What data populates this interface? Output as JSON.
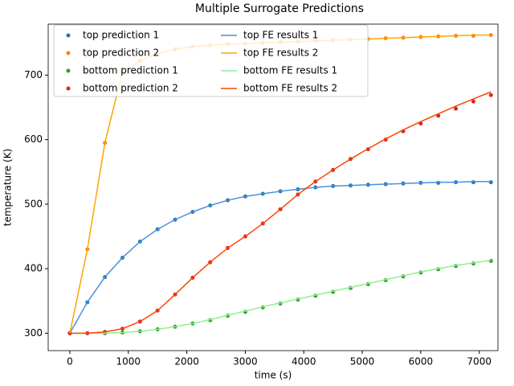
{
  "chart_data": {
    "type": "line",
    "title": "Multiple Surrogate Predictions",
    "x_label": "time (s)",
    "y_label": "temperature (K)",
    "x": [
      0,
      300,
      600,
      900,
      1200,
      1500,
      1800,
      2100,
      2400,
      2700,
      3000,
      3300,
      3600,
      3900,
      4200,
      4500,
      4800,
      5100,
      5400,
      5700,
      6000,
      6300,
      6600,
      6900,
      7200
    ],
    "xlim": [
      -370,
      7320
    ],
    "xticks": [
      0,
      1000,
      2000,
      3000,
      4000,
      5000,
      6000,
      7000
    ],
    "ylim": [
      273,
      779
    ],
    "yticks": [
      300,
      400,
      500,
      600,
      700
    ],
    "legend": "upper left",
    "legend_columns": 2,
    "series": [
      {
        "name": "top prediction 1",
        "style": "scatter",
        "color": "#1f77b4",
        "values": [
          300,
          348,
          387,
          417,
          442,
          461,
          476,
          488,
          498,
          506,
          512,
          516,
          520,
          523,
          526,
          528,
          529,
          530,
          531,
          532,
          533,
          533,
          534,
          534,
          534
        ]
      },
      {
        "name": "top prediction 2",
        "style": "scatter",
        "color": "#ff7f0e",
        "values": [
          300,
          430,
          595,
          705,
          722,
          733,
          740,
          744,
          746,
          748,
          749,
          750,
          751,
          752,
          753,
          754,
          755,
          756,
          757,
          758,
          759,
          760,
          761,
          761,
          762
        ]
      },
      {
        "name": "bottom prediction 1",
        "style": "scatter",
        "color": "#2ca02c",
        "values": [
          300,
          300,
          300,
          301,
          303,
          306,
          310,
          315,
          320,
          327,
          333,
          340,
          346,
          352,
          358,
          364,
          370,
          376,
          382,
          388,
          394,
          399,
          404,
          408,
          412
        ]
      },
      {
        "name": "bottom prediction 2",
        "style": "scatter",
        "color": "#d62728",
        "values": [
          300,
          300,
          302,
          307,
          318,
          335,
          360,
          386,
          410,
          432,
          450,
          470,
          492,
          515,
          535,
          553,
          570,
          585,
          600,
          613,
          625,
          637,
          648,
          659,
          669
        ]
      },
      {
        "name": "top FE results 1",
        "style": "line",
        "color": "#4a90d9",
        "values": [
          300,
          348,
          387,
          417,
          442,
          461,
          476,
          488,
          498,
          506,
          512,
          516,
          520,
          523,
          526,
          528,
          529,
          530,
          531,
          532,
          533,
          534,
          534,
          535,
          535
        ]
      },
      {
        "name": "top FE results 2",
        "style": "line",
        "color": "#ffa500",
        "values": [
          300,
          430,
          595,
          705,
          722,
          733,
          740,
          744,
          746,
          748,
          749,
          750,
          751,
          752,
          753,
          754,
          755,
          756,
          757,
          758,
          759,
          760,
          761,
          762,
          762
        ]
      },
      {
        "name": "bottom FE results 1",
        "style": "line",
        "color": "#90ee90",
        "values": [
          300,
          300,
          300,
          301,
          303,
          306,
          310,
          315,
          321,
          328,
          334,
          341,
          347,
          353,
          359,
          365,
          371,
          377,
          383,
          389,
          395,
          400,
          405,
          409,
          413
        ]
      },
      {
        "name": "bottom FE results 2",
        "style": "line",
        "color": "#ff4500",
        "values": [
          300,
          300,
          302,
          307,
          318,
          335,
          360,
          386,
          410,
          432,
          450,
          470,
          492,
          515,
          535,
          553,
          570,
          586,
          601,
          615,
          628,
          640,
          652,
          663,
          674
        ]
      }
    ]
  }
}
